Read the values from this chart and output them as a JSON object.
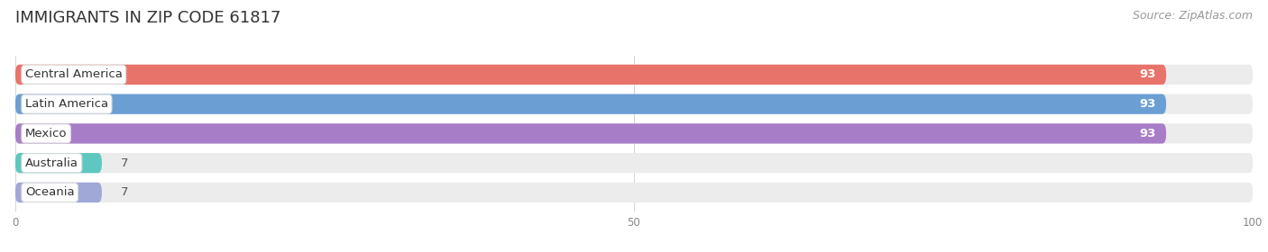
{
  "title": "IMMIGRANTS IN ZIP CODE 61817",
  "source": "Source: ZipAtlas.com",
  "categories": [
    "Central America",
    "Latin America",
    "Mexico",
    "Australia",
    "Oceania"
  ],
  "values": [
    93,
    93,
    93,
    7,
    7
  ],
  "bar_colors": [
    "#E8736A",
    "#6B9FD4",
    "#A87DC8",
    "#5EC8C0",
    "#A0A8D8"
  ],
  "bar_bg_color": "#ECECEC",
  "xlim": [
    0,
    100
  ],
  "xticks": [
    0,
    50,
    100
  ],
  "title_fontsize": 13,
  "source_fontsize": 9,
  "label_fontsize": 9.5,
  "value_fontsize": 9.5,
  "background_color": "#FFFFFF"
}
